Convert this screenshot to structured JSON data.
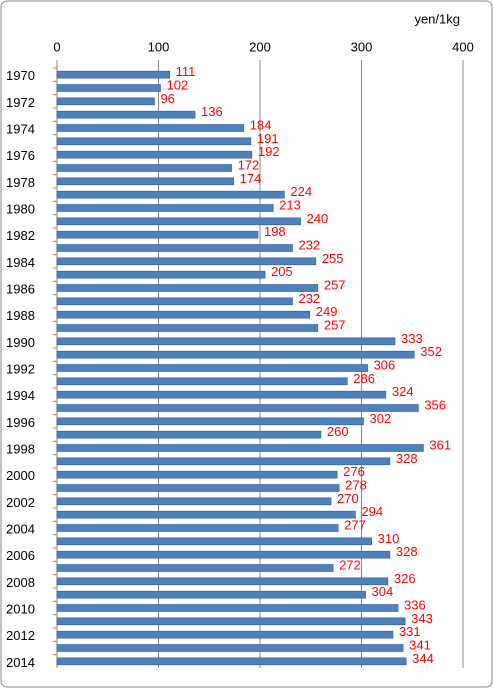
{
  "chart_data": {
    "type": "bar",
    "orientation": "horizontal",
    "x_axis_label": "yen/1kg",
    "categories": [
      "1970",
      null,
      "1972",
      null,
      "1974",
      null,
      "1976",
      null,
      "1978",
      null,
      "1980",
      null,
      "1982",
      null,
      "1984",
      null,
      "1986",
      null,
      "1988",
      null,
      "1990",
      null,
      "1992",
      null,
      "1994",
      null,
      "1996",
      null,
      "1998",
      null,
      "2000",
      null,
      "2002",
      null,
      "2004",
      null,
      "2006",
      null,
      "2008",
      null,
      "2010",
      null,
      "2012",
      null,
      "2014"
    ],
    "values": [
      111,
      102,
      96,
      136,
      184,
      191,
      192,
      172,
      174,
      224,
      213,
      240,
      198,
      232,
      255,
      205,
      257,
      232,
      249,
      257,
      333,
      352,
      306,
      286,
      324,
      356,
      302,
      260,
      361,
      328,
      276,
      278,
      270,
      294,
      277,
      310,
      328,
      272,
      326,
      304,
      336,
      343,
      331,
      341,
      344
    ],
    "color": "#4f81bd",
    "label_color": "#ff0000",
    "xlim": [
      0,
      400
    ],
    "xticks": [
      0,
      100,
      200,
      300,
      400
    ],
    "grid": true
  }
}
